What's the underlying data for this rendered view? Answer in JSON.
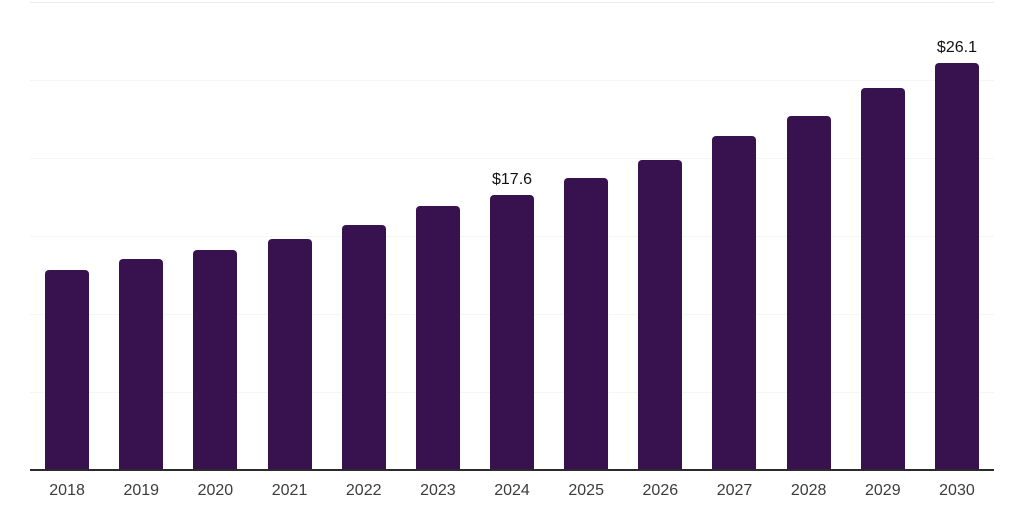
{
  "chart_data": {
    "type": "bar",
    "title": "",
    "xlabel": "",
    "ylabel": "",
    "categories": [
      "2018",
      "2019",
      "2020",
      "2021",
      "2022",
      "2023",
      "2024",
      "2025",
      "2026",
      "2027",
      "2028",
      "2029",
      "2030"
    ],
    "values": [
      12.8,
      13.5,
      14.1,
      14.8,
      15.7,
      16.9,
      17.6,
      18.7,
      19.9,
      21.4,
      22.7,
      24.5,
      26.1
    ],
    "data_labels": {
      "2024": "$17.6",
      "2030": "$26.1"
    },
    "ylim": [
      0,
      30
    ],
    "gridline_step": 5,
    "grid": true,
    "legend": false,
    "y_tick_labels_shown": false,
    "colors": {
      "bar": "#37124E",
      "axis_line": "#2B2B2B",
      "tick_label": "#3C3C3C",
      "data_label": "#111111",
      "gridline": "#F5F5F5",
      "top_gridline": "#EBEBEB",
      "background": "#FFFFFF"
    }
  }
}
